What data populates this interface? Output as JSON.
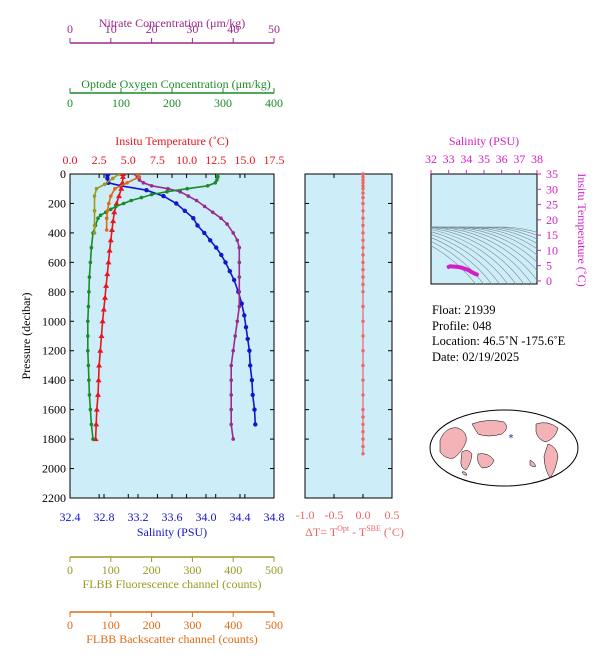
{
  "colors": {
    "nitrate": "#9b2a8e",
    "oxygen": "#1a8a2a",
    "temperature": "#e8141e",
    "salinity": "#1414c8",
    "fluorescence": "#9a9a22",
    "backscatter": "#e06a14",
    "delta": "#f06464",
    "ts_axis": "#d41ec8",
    "panel_bg": "#cdeef8"
  },
  "axes": {
    "nitrate_title": "Nitrate Concentration (μm/kg)",
    "oxygen_title": "Optode Oxygen Concentration (μm/kg)",
    "temperature_title": "Insitu Temperature (˚C)",
    "salinity_title": "Salinity (PSU)",
    "pressure_title": "Pressure (decibar)",
    "fluorescence_title": "FLBB Fluorescence channel (counts)",
    "backscatter_title": "FLBB Backscatter channel (counts)",
    "ts_salinity_title": "Salinity (PSU)",
    "ts_temperature_title": "Insitu Temperature (˚C)"
  },
  "info": {
    "float": "Float:  21939",
    "profile": "Profile:  048",
    "location": "Location:  46.5˚N  -175.6˚E",
    "date": "Date:  02/19/2025"
  },
  "chart_data": [
    {
      "type": "line",
      "name": "main-profile",
      "y_axis": {
        "label": "Pressure (decibar)",
        "lim": [
          2200,
          0
        ],
        "ticks": [
          0,
          200,
          400,
          600,
          800,
          1000,
          1200,
          1400,
          1600,
          1800,
          2000,
          2200
        ]
      },
      "x_axes": {
        "nitrate": {
          "lim": [
            0,
            50
          ],
          "ticks": [
            0,
            10,
            20,
            30,
            40,
            50
          ]
        },
        "oxygen": {
          "lim": [
            0,
            400
          ],
          "ticks": [
            0,
            100,
            200,
            300,
            400
          ]
        },
        "temperature": {
          "lim": [
            0,
            17.5
          ],
          "ticks": [
            0.0,
            2.5,
            5.0,
            7.5,
            10.0,
            12.5,
            15.0,
            17.5
          ]
        },
        "salinity": {
          "lim": [
            32.4,
            34.8
          ],
          "ticks": [
            32.4,
            32.8,
            33.2,
            33.6,
            34.0,
            34.4,
            34.8
          ]
        },
        "fluorescence": {
          "lim": [
            0,
            500
          ],
          "ticks": [
            0,
            100,
            200,
            300,
            400,
            500
          ]
        },
        "backscatter": {
          "lim": [
            0,
            500
          ],
          "ticks": [
            0,
            100,
            200,
            300,
            400,
            500
          ]
        }
      },
      "series": [
        {
          "name": "Salinity (PSU)",
          "axis": "salinity",
          "x": [
            32.85,
            32.84,
            32.84,
            32.85,
            33.0,
            33.3,
            33.5,
            33.65,
            33.75,
            33.85,
            33.9,
            33.98,
            34.05,
            34.12,
            34.18,
            34.23,
            34.28,
            34.33,
            34.38,
            34.42,
            34.45,
            34.47,
            34.49,
            34.51,
            34.52,
            34.54,
            34.55,
            34.57,
            34.58
          ],
          "y": [
            0,
            10,
            30,
            60,
            80,
            110,
            150,
            200,
            250,
            300,
            350,
            400,
            450,
            500,
            550,
            600,
            660,
            720,
            800,
            880,
            960,
            1040,
            1120,
            1200,
            1300,
            1400,
            1500,
            1600,
            1700
          ]
        },
        {
          "name": "Insitu Temperature (˚C)",
          "axis": "temperature",
          "x": [
            4.55,
            4.55,
            4.5,
            4.4,
            4.2,
            4.0,
            3.8,
            3.7,
            3.6,
            3.5,
            3.4,
            3.3,
            3.2,
            3.1,
            3.0,
            2.9,
            2.8,
            2.7,
            2.6,
            2.5,
            2.45,
            2.4,
            2.3,
            2.25,
            2.2
          ],
          "y": [
            0,
            20,
            60,
            100,
            150,
            200,
            260,
            320,
            380,
            450,
            520,
            600,
            680,
            760,
            840,
            920,
            1000,
            1100,
            1200,
            1300,
            1400,
            1500,
            1600,
            1700,
            1800
          ]
        },
        {
          "name": "Nitrate Concentration (μm/kg)",
          "axis": "nitrate",
          "x": [
            16,
            16.5,
            17,
            18,
            20,
            24,
            27,
            29,
            31,
            33,
            35,
            37,
            38.5,
            40,
            41,
            41.5,
            41.5,
            41.5,
            41.5,
            41.5,
            41,
            40.5,
            40,
            39.5,
            39.5,
            39.5,
            39.5,
            39.5,
            40
          ],
          "y": [
            0,
            20,
            40,
            60,
            80,
            100,
            120,
            150,
            180,
            220,
            260,
            300,
            340,
            400,
            450,
            500,
            600,
            700,
            800,
            900,
            1000,
            1100,
            1200,
            1300,
            1400,
            1500,
            1600,
            1700,
            1800
          ]
        },
        {
          "name": "Optode Oxygen Concentration (μm/kg)",
          "axis": "oxygen",
          "x": [
            290,
            290,
            288,
            285,
            270,
            230,
            190,
            160,
            140,
            120,
            105,
            90,
            80,
            70,
            60,
            55,
            50,
            45,
            42,
            40,
            38,
            37,
            36,
            35,
            35,
            35,
            36,
            37,
            38,
            40,
            42,
            45
          ],
          "y": [
            0,
            20,
            40,
            60,
            80,
            100,
            120,
            140,
            160,
            180,
            200,
            220,
            240,
            260,
            280,
            300,
            350,
            400,
            500,
            600,
            700,
            800,
            900,
            1000,
            1100,
            1200,
            1300,
            1400,
            1500,
            1600,
            1700,
            1800
          ]
        },
        {
          "name": "FLBB Fluorescence channel (counts)",
          "axis": "fluorescence",
          "x": [
            120,
            105,
            85,
            65,
            60,
            60,
            60,
            60
          ],
          "y": [
            0,
            30,
            70,
            100,
            150,
            250,
            350,
            400
          ]
        },
        {
          "name": "FLBB Backscatter channel (counts)",
          "axis": "backscatter",
          "x": [
            165,
            170,
            140,
            110,
            100,
            95,
            92,
            90,
            90
          ],
          "y": [
            0,
            20,
            60,
            100,
            150,
            200,
            250,
            300,
            380
          ]
        }
      ]
    },
    {
      "type": "scatter",
      "name": "delta-temperature",
      "xlabel": "ΔT= T",
      "xlabel_sup1": "Opt",
      "xlabel_mid": " - T",
      "xlabel_sup2": "SBE",
      "xlabel_unit": " (˚C)",
      "xlim": [
        -1.0,
        0.5
      ],
      "x_ticks": [
        -1.0,
        -0.5,
        0.0,
        0.5
      ],
      "x": [
        0.0,
        0.0,
        0.0,
        0.0,
        0.0,
        0.0,
        0.0,
        0.0,
        0.0,
        0.0,
        0.0,
        0.0,
        0.0,
        0.0,
        0.0,
        0.0,
        0.0,
        0.0,
        0.0,
        0.0,
        0.0,
        0.0,
        0.0,
        0.0,
        0.0,
        0.0,
        0.0,
        0.0,
        0.0,
        0.0,
        0.0,
        0.0,
        0.0,
        0.0,
        0.0
      ],
      "y": [
        0,
        20,
        40,
        60,
        80,
        100,
        130,
        160,
        200,
        250,
        300,
        350,
        400,
        450,
        500,
        550,
        600,
        650,
        700,
        750,
        800,
        900,
        1000,
        1100,
        1200,
        1300,
        1400,
        1500,
        1600,
        1700,
        1800,
        1900,
        1850,
        1750,
        1650
      ]
    },
    {
      "type": "scatter",
      "name": "ts-diagram",
      "xlabel": "Salinity (PSU)",
      "ylabel": "Insitu Temperature (˚C)",
      "xlim": [
        32,
        38
      ],
      "ylim": [
        -1,
        35
      ],
      "x_ticks": [
        32,
        33,
        34,
        35,
        36,
        37,
        38
      ],
      "y_ticks": [
        0,
        5,
        10,
        15,
        20,
        25,
        30,
        35
      ],
      "x": [
        33.0,
        33.1,
        33.3,
        33.5,
        33.7,
        33.8,
        33.9,
        34.0,
        34.05,
        34.1,
        34.15,
        34.2,
        34.25,
        34.3,
        34.35,
        34.4,
        34.45,
        34.5,
        34.55,
        34.6
      ],
      "y": [
        4.6,
        4.8,
        4.7,
        4.6,
        4.4,
        4.2,
        4.0,
        3.8,
        3.7,
        3.6,
        3.4,
        3.3,
        3.1,
        2.9,
        2.8,
        2.6,
        2.5,
        2.3,
        2.2,
        2.1
      ]
    }
  ]
}
